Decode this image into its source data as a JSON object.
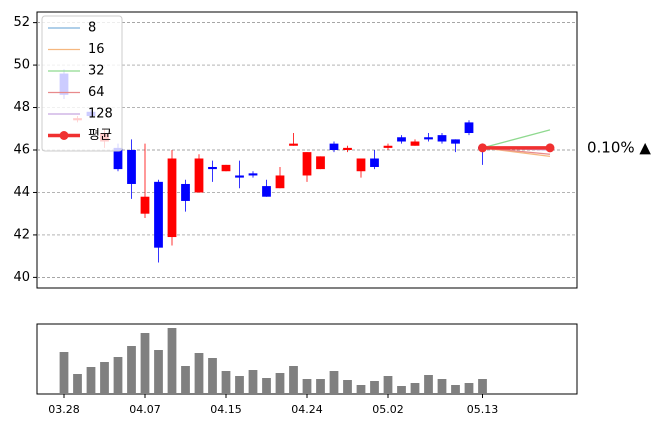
{
  "chart_data": {
    "type": "candlestick",
    "categories": [
      "03.28",
      null,
      null,
      null,
      null,
      null,
      "04.07",
      null,
      null,
      null,
      null,
      null,
      "04.15",
      null,
      null,
      null,
      null,
      null,
      "04.24",
      null,
      null,
      null,
      null,
      null,
      "05.02",
      null,
      null,
      null,
      null,
      null,
      null,
      "05.13"
    ],
    "open": [
      49.6,
      47.4,
      47.8,
      46.4,
      46.1,
      46.0,
      43.0,
      44.5,
      41.9,
      44.4,
      44.0,
      45.2,
      45.0,
      44.8,
      44.9,
      44.3,
      44.2,
      46.2,
      44.8,
      45.1,
      46.3,
      46.0,
      45.0,
      45.6,
      46.1,
      46.6,
      46.2,
      46.6,
      46.7,
      46.5,
      47.3,
      46.15
    ],
    "high": [
      49.8,
      47.6,
      47.9,
      47.0,
      46.3,
      46.5,
      46.3,
      44.6,
      46.0,
      44.6,
      45.8,
      45.5,
      45.3,
      45.5,
      45.0,
      44.6,
      45.2,
      46.8,
      45.9,
      45.7,
      46.4,
      46.2,
      45.6,
      46.0,
      46.3,
      46.7,
      46.5,
      46.8,
      46.8,
      46.5,
      47.4,
      46.2
    ],
    "low": [
      48.4,
      47.3,
      47.5,
      46.1,
      45.0,
      43.7,
      42.8,
      40.7,
      41.5,
      43.1,
      44.0,
      44.5,
      45.0,
      44.2,
      44.7,
      43.8,
      44.2,
      46.2,
      44.5,
      45.1,
      45.9,
      45.9,
      44.7,
      45.1,
      46.0,
      46.3,
      46.2,
      46.4,
      46.3,
      45.9,
      46.7,
      45.3
    ],
    "close": [
      48.6,
      47.5,
      47.6,
      46.8,
      45.1,
      44.4,
      43.8,
      41.4,
      45.6,
      43.6,
      45.6,
      45.1,
      45.3,
      44.7,
      44.8,
      43.8,
      44.8,
      46.3,
      45.9,
      45.7,
      46.0,
      46.1,
      45.6,
      45.2,
      46.2,
      46.4,
      46.4,
      46.5,
      46.4,
      46.3,
      46.8,
      46.05
    ],
    "up_color": "#ff0000",
    "down_color": "#0000ff",
    "xlim": [
      -2,
      38
    ],
    "ylim": [
      39.5,
      52.5
    ],
    "yticks": [
      40,
      42,
      44,
      46,
      48,
      50,
      52
    ],
    "grid": true,
    "legend": "upper left",
    "forecast": {
      "x": [
        31,
        36
      ],
      "series": [
        {
          "name": "8",
          "color": "#7fb2dc",
          "values": [
            46.1,
            46.1
          ]
        },
        {
          "name": "16",
          "color": "#f5b77f",
          "values": [
            46.1,
            45.7
          ]
        },
        {
          "name": "32",
          "color": "#8fd98f",
          "values": [
            46.1,
            46.95
          ]
        },
        {
          "name": "64",
          "color": "#e88a8b",
          "values": [
            46.1,
            45.8
          ]
        },
        {
          "name": "128",
          "color": "#c8a8e0",
          "values": [
            46.1,
            46.0
          ]
        },
        {
          "name": "평균",
          "color": "#f03030",
          "values": [
            46.1,
            46.1
          ]
        }
      ],
      "annotation": "0.10% ▲",
      "annotation_color": "#ff0000"
    },
    "volume": [
      42,
      20,
      27,
      32,
      37,
      48,
      61,
      44,
      66,
      28,
      41,
      36,
      23,
      18,
      24,
      16,
      21,
      28,
      15,
      15,
      23,
      14,
      9,
      13,
      18,
      8,
      11,
      19,
      15,
      9,
      11,
      15
    ],
    "volume_color": "#808080",
    "volume_ylim": [
      0,
      70
    ]
  }
}
